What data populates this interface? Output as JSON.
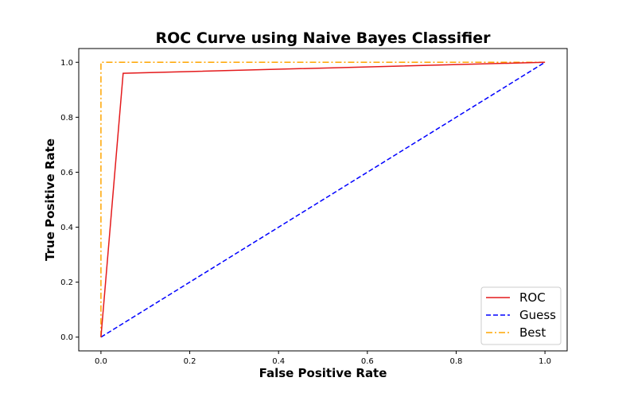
{
  "chart_data": {
    "type": "line",
    "title": "ROC Curve using Naive Bayes Classifier",
    "xlabel": "False Positive Rate",
    "ylabel": "True Positive Rate",
    "xlim": [
      -0.05,
      1.05
    ],
    "ylim": [
      -0.05,
      1.05
    ],
    "xticks": [
      0.0,
      0.2,
      0.4,
      0.6,
      0.8,
      1.0
    ],
    "yticks": [
      0.0,
      0.2,
      0.4,
      0.6,
      0.8,
      1.0
    ],
    "xtick_labels": [
      "0.0",
      "0.2",
      "0.4",
      "0.6",
      "0.8",
      "1.0"
    ],
    "ytick_labels": [
      "0.0",
      "0.2",
      "0.4",
      "0.6",
      "0.8",
      "1.0"
    ],
    "grid": false,
    "legend_position": "bottom-right",
    "series": [
      {
        "name": "ROC",
        "color": "#e41a1c",
        "style": "solid",
        "x": [
          0.0,
          0.05,
          1.0
        ],
        "y": [
          0.0,
          0.96,
          1.0
        ]
      },
      {
        "name": "Guess",
        "color": "#0000ff",
        "style": "dashed",
        "x": [
          0.0,
          1.0
        ],
        "y": [
          0.0,
          1.0
        ]
      },
      {
        "name": "Best",
        "color": "#ffa500",
        "style": "dashdot",
        "x": [
          0.0,
          0.0,
          1.0
        ],
        "y": [
          0.0,
          1.0,
          1.0
        ]
      }
    ]
  }
}
